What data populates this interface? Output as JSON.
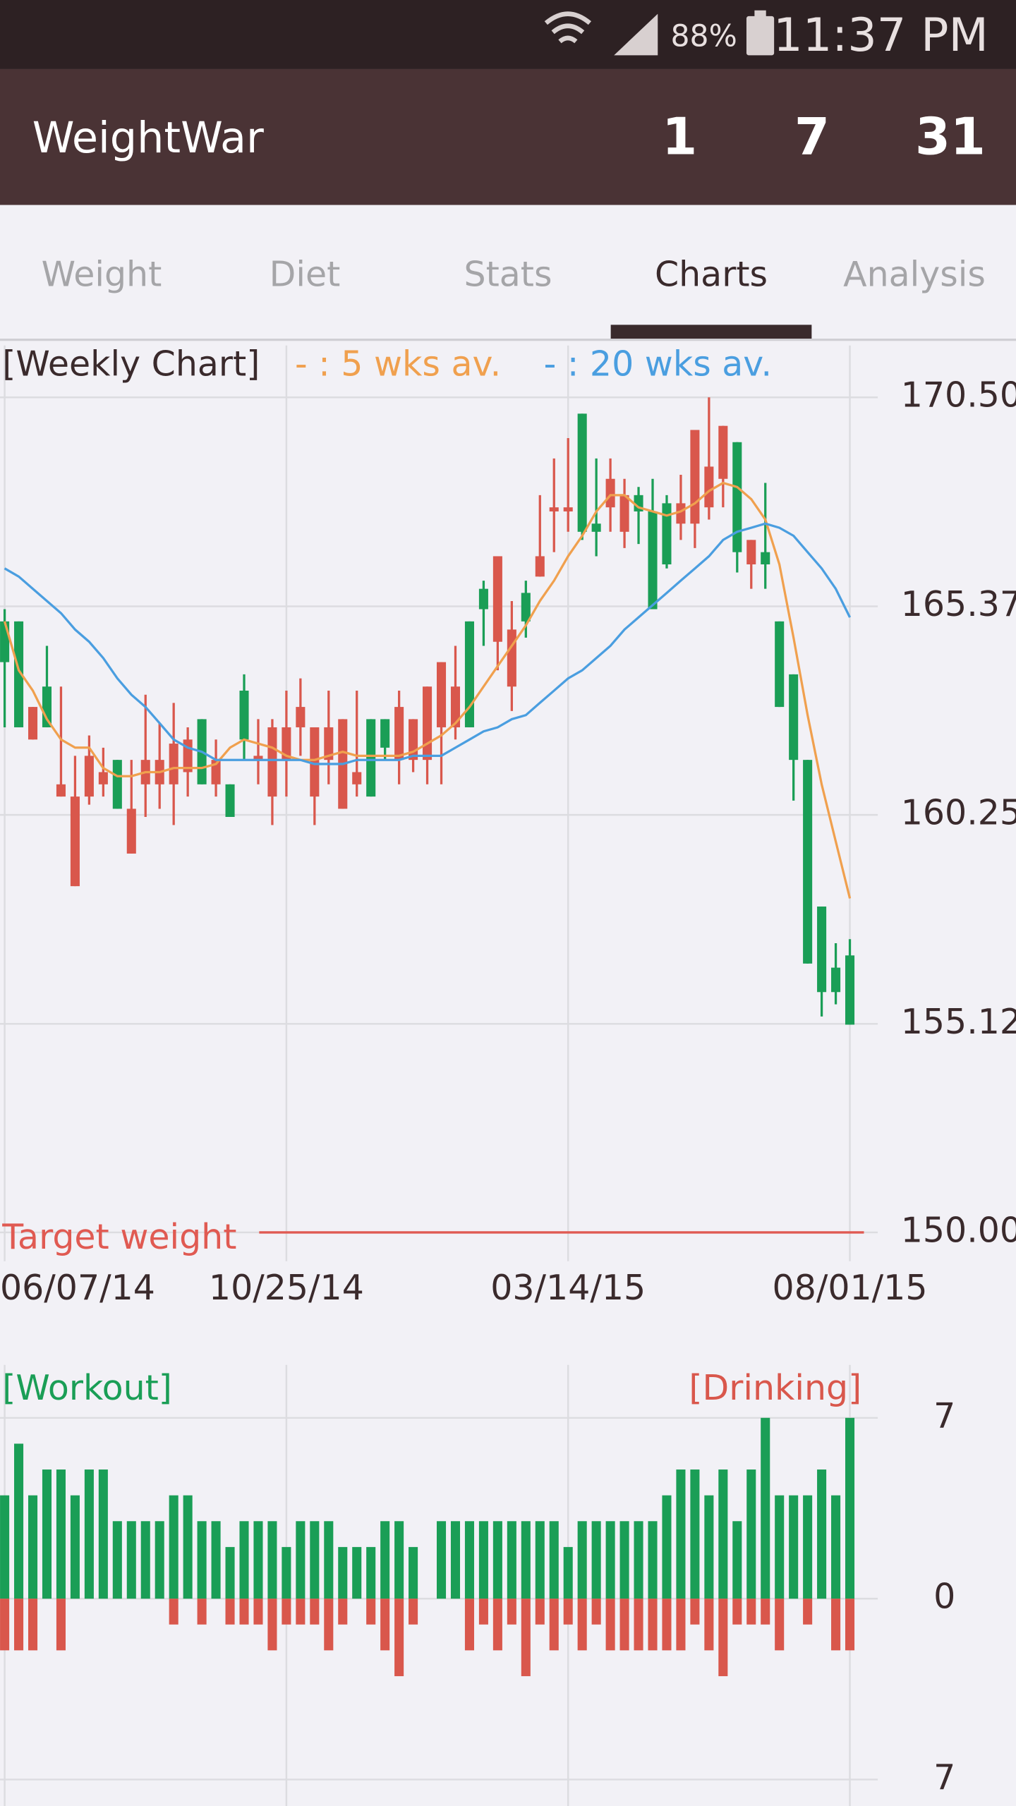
{
  "status_bar": {
    "battery": "88%",
    "time": "11:37 PM"
  },
  "app_bar": {
    "title": "WeightWar",
    "counters": [
      "1",
      "7",
      "31"
    ]
  },
  "tabs": {
    "items": [
      "Weight",
      "Diet",
      "Stats",
      "Charts",
      "Analysis"
    ],
    "selected": 3
  },
  "chart_data": [
    {
      "type": "candlestick",
      "title": "[Weekly Chart]",
      "open": [
        165.0,
        165.0,
        162.1,
        163.4,
        160.7,
        158.5,
        160.7,
        161.0,
        161.6,
        159.3,
        161.0,
        161.0,
        161.0,
        161.3,
        162.6,
        161.0,
        161.0,
        163.3,
        161.6,
        160.7,
        161.6,
        162.4,
        160.7,
        161.6,
        160.4,
        161.0,
        162.6,
        162.6,
        161.6,
        161.6,
        161.6,
        162.4,
        162.4,
        165.0,
        165.8,
        164.5,
        163.4,
        165.7,
        166.1,
        167.7,
        167.7,
        170.1,
        167.4,
        167.8,
        167.2,
        168.1,
        167.7,
        167.9,
        167.4,
        167.4,
        167.8,
        168.5,
        169.4,
        166.4,
        166.7,
        165.0,
        163.7,
        161.6,
        158.0,
        156.5,
        156.8
      ],
      "high": [
        165.3,
        165.0,
        162.9,
        164.4,
        163.4,
        161.7,
        162.2,
        161.9,
        161.6,
        161.6,
        163.2,
        162.5,
        163.0,
        162.4,
        162.6,
        162.1,
        161.0,
        163.7,
        162.6,
        162.6,
        163.3,
        163.6,
        162.4,
        163.3,
        162.6,
        163.3,
        162.6,
        162.6,
        163.3,
        162.6,
        163.4,
        164.0,
        164.4,
        165.0,
        166.0,
        166.6,
        165.5,
        166.0,
        168.1,
        169.0,
        169.5,
        170.1,
        169.0,
        169.0,
        168.5,
        168.3,
        168.5,
        168.1,
        168.6,
        169.7,
        170.5,
        169.8,
        169.4,
        167.0,
        168.4,
        165.0,
        163.7,
        161.6,
        158.0,
        157.1,
        157.2
      ],
      "low": [
        162.4,
        162.4,
        162.1,
        162.4,
        160.7,
        158.5,
        160.5,
        160.7,
        160.4,
        159.3,
        160.2,
        160.4,
        160.0,
        160.7,
        161.0,
        160.7,
        160.2,
        161.6,
        161.0,
        160.0,
        160.7,
        161.7,
        160.0,
        161.0,
        160.4,
        160.7,
        160.7,
        161.6,
        161.0,
        161.3,
        161.0,
        161.0,
        162.1,
        162.4,
        164.4,
        163.8,
        162.8,
        164.6,
        166.1,
        166.7,
        167.2,
        167.0,
        166.6,
        167.2,
        166.8,
        166.9,
        165.3,
        166.3,
        167.0,
        166.8,
        167.5,
        167.8,
        166.2,
        165.8,
        165.8,
        162.9,
        160.6,
        156.6,
        155.3,
        155.6,
        155.1
      ],
      "close": [
        164.0,
        162.4,
        162.9,
        162.4,
        161.0,
        160.7,
        161.7,
        161.3,
        160.4,
        160.4,
        161.6,
        161.6,
        162.0,
        162.1,
        161.0,
        161.6,
        160.2,
        162.1,
        161.7,
        162.4,
        162.4,
        162.9,
        162.4,
        162.4,
        162.6,
        161.3,
        160.7,
        161.9,
        162.9,
        162.6,
        163.4,
        164.0,
        163.4,
        162.4,
        165.3,
        166.6,
        164.8,
        165.0,
        166.6,
        167.8,
        167.8,
        167.2,
        167.2,
        168.5,
        168.1,
        167.7,
        165.3,
        166.4,
        167.9,
        169.7,
        168.8,
        169.8,
        166.7,
        167.0,
        166.4,
        162.9,
        161.6,
        156.6,
        155.9,
        155.9,
        155.1
      ],
      "up_color": "#d9574c",
      "down_color": "#1a9e56",
      "series": [
        {
          "name": "- : 5 wks av.",
          "color": "#f0a04e",
          "values": [
            165.0,
            163.8,
            163.3,
            162.6,
            162.1,
            161.9,
            161.9,
            161.4,
            161.2,
            161.2,
            161.3,
            161.3,
            161.4,
            161.4,
            161.4,
            161.5,
            161.9,
            162.1,
            162.0,
            161.9,
            161.7,
            161.6,
            161.6,
            161.7,
            161.8,
            161.7,
            161.7,
            161.7,
            161.7,
            161.8,
            162.0,
            162.2,
            162.5,
            162.9,
            163.4,
            163.9,
            164.4,
            164.9,
            165.5,
            166.0,
            166.6,
            167.1,
            167.7,
            168.1,
            168.1,
            167.8,
            167.7,
            167.6,
            167.7,
            167.9,
            168.2,
            168.4,
            168.3,
            168.0,
            167.5,
            166.4,
            164.6,
            162.7,
            161.0,
            159.6,
            158.2
          ]
        },
        {
          "name": "- : 20 wks av.",
          "color": "#4a9ee0",
          "values": [
            166.3,
            166.1,
            165.8,
            165.5,
            165.2,
            164.8,
            164.5,
            164.1,
            163.6,
            163.2,
            162.9,
            162.5,
            162.1,
            161.9,
            161.8,
            161.6,
            161.6,
            161.6,
            161.6,
            161.6,
            161.6,
            161.6,
            161.5,
            161.5,
            161.5,
            161.6,
            161.6,
            161.6,
            161.6,
            161.7,
            161.7,
            161.7,
            161.9,
            162.1,
            162.3,
            162.4,
            162.6,
            162.7,
            163.0,
            163.3,
            163.6,
            163.8,
            164.1,
            164.4,
            164.8,
            165.1,
            165.4,
            165.7,
            166.0,
            166.3,
            166.6,
            167.0,
            167.2,
            167.3,
            167.4,
            167.3,
            167.1,
            166.7,
            166.3,
            165.8,
            165.1
          ]
        }
      ],
      "target": {
        "label": "Target weight",
        "value": 150,
        "color": "#e05a52"
      },
      "xlim": [
        -0.33,
        61
      ],
      "xticks": [
        {
          "value": 0,
          "label": "06/07/14"
        },
        {
          "value": 20,
          "label": "10/25/14"
        },
        {
          "value": 40,
          "label": "03/14/15"
        },
        {
          "value": 60,
          "label": "08/01/15"
        }
      ],
      "ylim": [
        150,
        170.5
      ],
      "yticks": [
        {
          "value": 170.5,
          "label": "170.50"
        },
        {
          "value": 165.37,
          "label": "165.37"
        },
        {
          "value": 160.25,
          "label": "160.25"
        },
        {
          "value": 155.12,
          "label": "155.12"
        },
        {
          "value": 150,
          "label": "150.00"
        }
      ],
      "grid": true
    },
    {
      "type": "bar",
      "series": [
        {
          "name": "[Workout]",
          "color": "#1a9e56",
          "values": [
            4,
            6,
            4,
            5,
            5,
            4,
            5,
            5,
            3,
            3,
            3,
            3,
            4,
            4,
            3,
            3,
            2,
            3,
            3,
            3,
            2,
            3,
            3,
            3,
            2,
            2,
            2,
            3,
            3,
            2,
            0,
            3,
            3,
            3,
            3,
            3,
            3,
            3,
            3,
            3,
            2,
            3,
            3,
            3,
            3,
            3,
            3,
            4,
            5,
            5,
            4,
            5,
            3,
            5,
            7,
            4,
            4,
            4,
            5,
            4,
            7
          ]
        },
        {
          "name": "[Drinking]",
          "color": "#d9574c",
          "values": [
            -2,
            -2,
            -2,
            0,
            -2,
            0,
            0,
            0,
            0,
            0,
            0,
            0,
            -1,
            0,
            -1,
            0,
            -1,
            -1,
            -1,
            -2,
            -1,
            -1,
            -1,
            -2,
            -1,
            0,
            -1,
            -2,
            -3,
            -1,
            0,
            0,
            0,
            -2,
            -1,
            -2,
            -1,
            -3,
            -1,
            -2,
            -1,
            -2,
            -1,
            -2,
            -2,
            -2,
            -2,
            -2,
            -2,
            -1,
            -2,
            -3,
            -1,
            -1,
            -1,
            -2,
            0,
            -1,
            0,
            -2,
            -2
          ]
        }
      ],
      "xlim": [
        -0.33,
        61
      ],
      "ylim": [
        -7,
        7
      ],
      "yticks": [
        7,
        0,
        {
          "value": -7,
          "label": "7"
        }
      ],
      "grid": true
    }
  ]
}
